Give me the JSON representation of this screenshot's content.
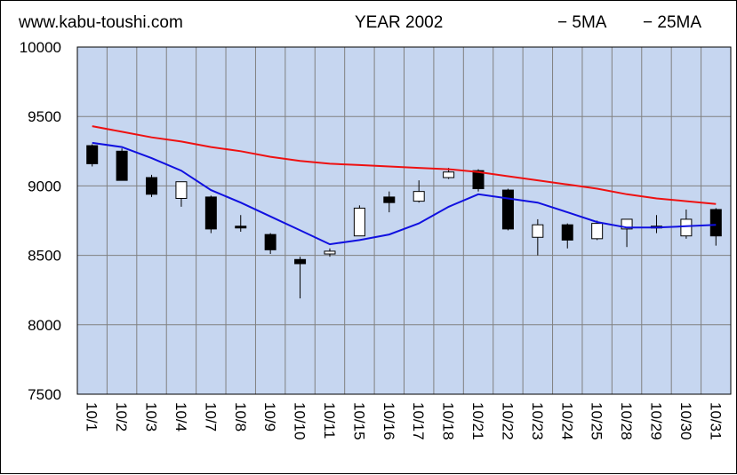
{
  "header": {
    "site": "www.kabu-toushi.com",
    "title": "YEAR 2002",
    "legend_5ma": "− 5MA",
    "legend_25ma": "− 25MA"
  },
  "colors": {
    "plot_bg": "#c6d6f0",
    "grid": "#808080",
    "ma5": "#1010e0",
    "ma25": "#ee1111",
    "up_body": "#ffffff",
    "down_body": "#000000"
  },
  "chart_data": {
    "type": "candlestick",
    "title": "YEAR 2002",
    "xlabel": "",
    "ylabel": "",
    "ylim": [
      7500,
      10000
    ],
    "yticks": [
      "10000",
      "9500",
      "9000",
      "8500",
      "8000",
      "7500"
    ],
    "grid": true,
    "categories": [
      "10/1",
      "10/2",
      "10/3",
      "10/4",
      "10/7",
      "10/8",
      "10/9",
      "10/10",
      "10/11",
      "10/15",
      "10/16",
      "10/17",
      "10/18",
      "10/21",
      "10/22",
      "10/23",
      "10/24",
      "10/25",
      "10/28",
      "10/29",
      "10/30",
      "10/31"
    ],
    "open": [
      9290,
      9250,
      9060,
      8910,
      8920,
      8710,
      8650,
      8470,
      8510,
      8640,
      8920,
      8890,
      9060,
      9110,
      8970,
      8630,
      8720,
      8620,
      8690,
      8710,
      8640,
      8830
    ],
    "high": [
      9300,
      9270,
      9080,
      9030,
      8930,
      8790,
      8660,
      8490,
      8550,
      8860,
      8960,
      9040,
      9130,
      9120,
      8980,
      8760,
      8730,
      8750,
      8750,
      8790,
      8830,
      8840
    ],
    "low": [
      9140,
      9040,
      8920,
      8850,
      8660,
      8670,
      8510,
      8190,
      8490,
      8640,
      8810,
      8880,
      9050,
      8960,
      8680,
      8500,
      8550,
      8610,
      8560,
      8660,
      8620,
      8570
    ],
    "close": [
      9160,
      9040,
      8940,
      9030,
      8690,
      8700,
      8540,
      8440,
      8530,
      8840,
      8880,
      8960,
      9100,
      8980,
      8690,
      8720,
      8610,
      8730,
      8760,
      8700,
      8760,
      8640
    ],
    "series": [
      {
        "name": "5MA",
        "values": [
          9310,
          9280,
          9200,
          9110,
          8970,
          8880,
          8780,
          8680,
          8580,
          8610,
          8650,
          8730,
          8850,
          8940,
          8910,
          8880,
          8810,
          8740,
          8700,
          8700,
          8710,
          8720
        ]
      },
      {
        "name": "25MA",
        "values": [
          9430,
          9390,
          9350,
          9320,
          9280,
          9250,
          9210,
          9180,
          9160,
          9150,
          9140,
          9130,
          9120,
          9100,
          9070,
          9040,
          9010,
          8980,
          8940,
          8910,
          8890,
          8870
        ]
      }
    ]
  }
}
